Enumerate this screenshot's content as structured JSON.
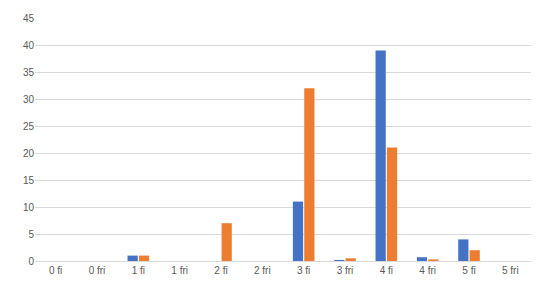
{
  "chart_data": {
    "type": "bar",
    "categories": [
      "0 fi",
      "0 fri",
      "1 fi",
      "1 fri",
      "2 fi",
      "2 fri",
      "3 fi",
      "3 fri",
      "4 fi",
      "4 fri",
      "5 fi",
      "5 fri"
    ],
    "series": [
      {
        "color": "#4472c4",
        "values": [
          0,
          0,
          1,
          0,
          0,
          0,
          11,
          0.2,
          39,
          0.7,
          4,
          0
        ]
      },
      {
        "color": "#ed7d31",
        "values": [
          0,
          0,
          1,
          0,
          7,
          0,
          32,
          0.5,
          21,
          0.3,
          2,
          0
        ]
      }
    ],
    "ylim": [
      0,
      45
    ],
    "yticks": [
      0,
      5,
      10,
      15,
      20,
      25,
      30,
      35,
      40,
      45
    ],
    "grid": true
  }
}
